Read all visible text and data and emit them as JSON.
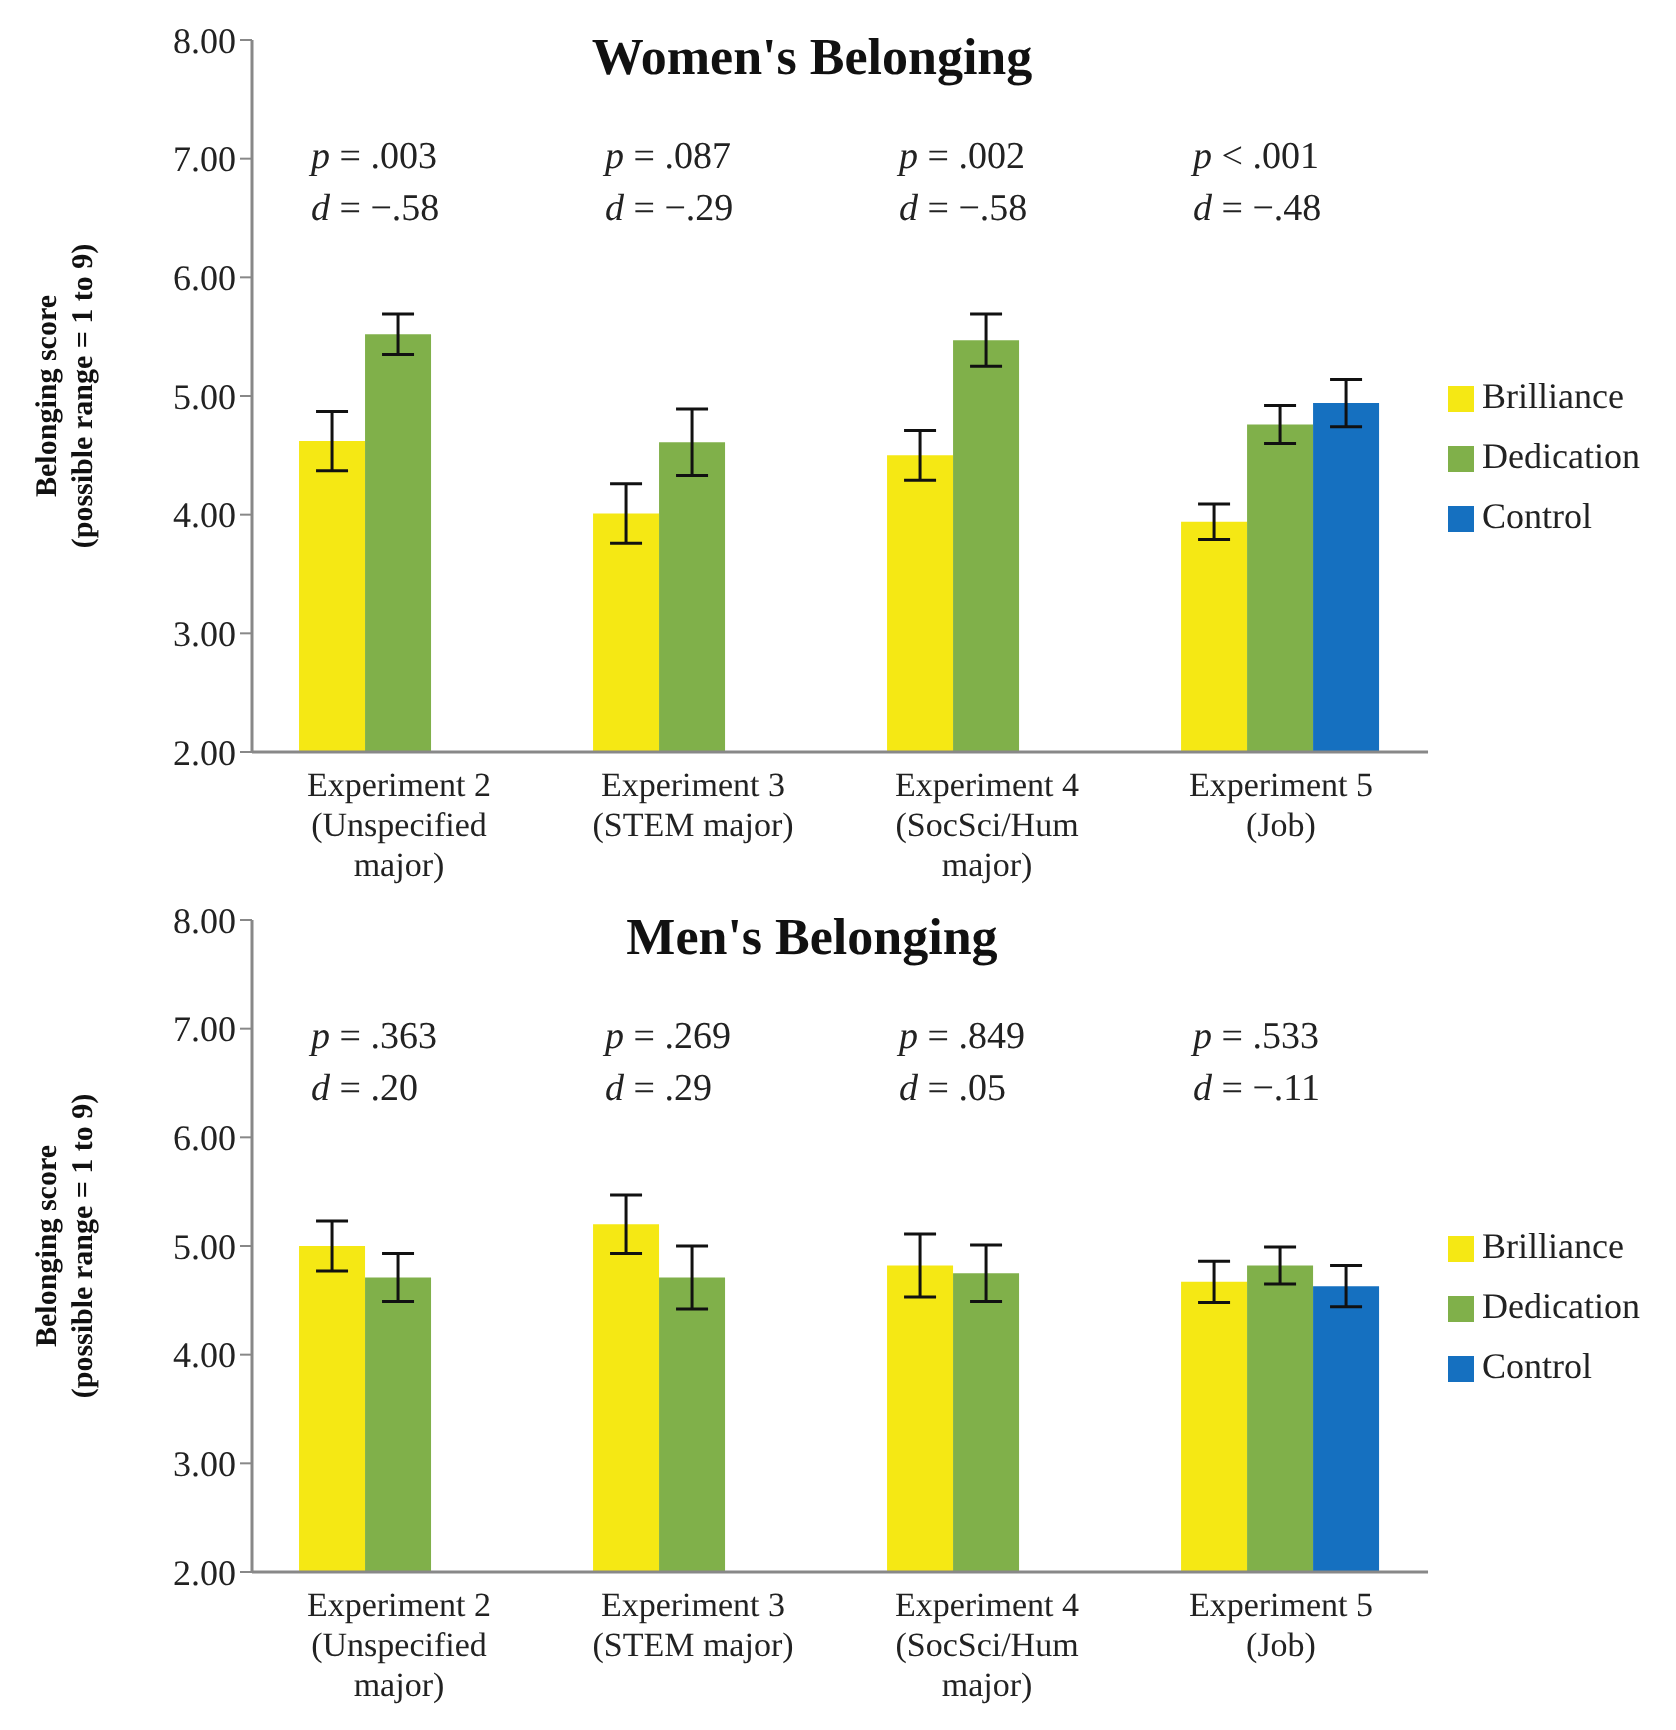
{
  "chart_data": [
    {
      "type": "bar",
      "title": "Women's Belonging",
      "ylabel": "Belonging score\n(possible range = 1 to 9)",
      "categories": [
        "Experiment 2\n(Unspecified\nmajor)",
        "Experiment 3\n(STEM major)",
        "Experiment 4\n(SocSci/Hum\nmajor)",
        "Experiment 5\n(Job)"
      ],
      "series": [
        {
          "name": "Brilliance",
          "color": "#f5e814",
          "values": [
            4.62,
            4.01,
            4.5,
            3.94
          ],
          "errors": [
            0.25,
            0.25,
            0.21,
            0.15
          ]
        },
        {
          "name": "Dedication",
          "color": "#80b04a",
          "values": [
            5.52,
            4.61,
            5.47,
            4.76
          ],
          "errors": [
            0.17,
            0.28,
            0.22,
            0.16
          ]
        },
        {
          "name": "Control",
          "color": "#1570c0",
          "values": [
            null,
            null,
            null,
            4.94
          ],
          "errors": [
            null,
            null,
            null,
            0.2
          ]
        }
      ],
      "ylim": [
        2,
        8
      ],
      "yticks": [
        {
          "value": 2,
          "label": "2.00"
        },
        {
          "value": 3,
          "label": "3.00"
        },
        {
          "value": 4,
          "label": "4.00"
        },
        {
          "value": 5,
          "label": "5.00"
        },
        {
          "value": 6,
          "label": "6.00"
        },
        {
          "value": 7,
          "label": "7.00"
        },
        {
          "value": 8,
          "label": "8.00"
        }
      ],
      "legend": "right",
      "annotations": [
        "p = .003\nd = −.58",
        "p = .087\nd = −.29",
        "p = .002\nd = −.58",
        "p < .001\nd = −.48"
      ]
    },
    {
      "type": "bar",
      "title": "Men's Belonging",
      "ylabel": "Belonging score\n(possible range = 1 to 9)",
      "categories": [
        "Experiment 2\n(Unspecified\nmajor)",
        "Experiment 3\n(STEM major)",
        "Experiment 4\n(SocSci/Hum\nmajor)",
        "Experiment 5\n(Job)"
      ],
      "series": [
        {
          "name": "Brilliance",
          "color": "#f5e814",
          "values": [
            5.0,
            5.2,
            4.82,
            4.67
          ],
          "errors": [
            0.23,
            0.27,
            0.29,
            0.19
          ]
        },
        {
          "name": "Dedication",
          "color": "#80b04a",
          "values": [
            4.71,
            4.71,
            4.75,
            4.82
          ],
          "errors": [
            0.22,
            0.29,
            0.26,
            0.17
          ]
        },
        {
          "name": "Control",
          "color": "#1570c0",
          "values": [
            null,
            null,
            null,
            4.63
          ],
          "errors": [
            null,
            null,
            null,
            0.19
          ]
        }
      ],
      "ylim": [
        2,
        8
      ],
      "yticks": [
        {
          "value": 2,
          "label": "2.00"
        },
        {
          "value": 3,
          "label": "3.00"
        },
        {
          "value": 4,
          "label": "4.00"
        },
        {
          "value": 5,
          "label": "5.00"
        },
        {
          "value": 6,
          "label": "6.00"
        },
        {
          "value": 7,
          "label": "7.00"
        },
        {
          "value": 8,
          "label": "8.00"
        }
      ],
      "legend": "right",
      "annotations": [
        "p = .363\nd = .20",
        "p = .269\nd = .29",
        "p = .849\nd = .05",
        "p = .533\nd = −.11"
      ]
    }
  ]
}
